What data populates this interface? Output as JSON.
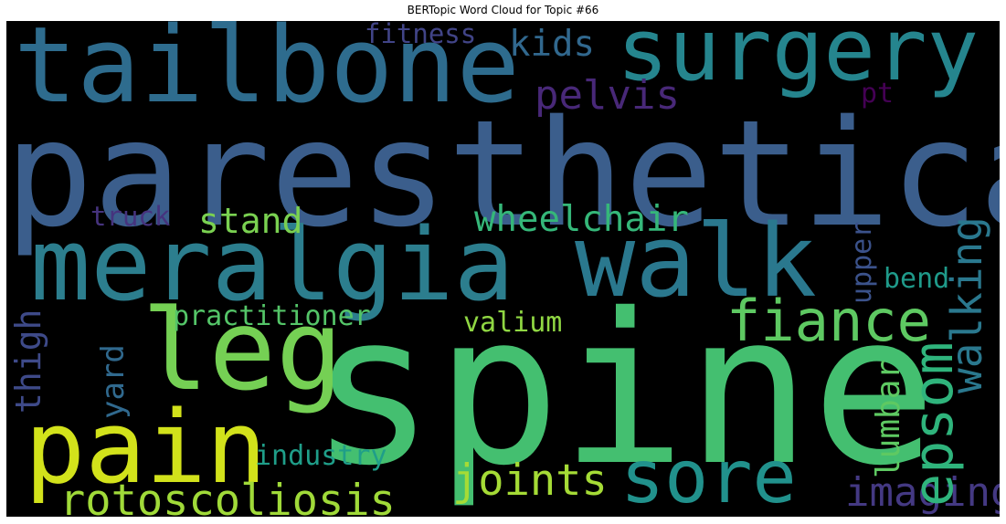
{
  "title": "BERTopic Word Cloud for Topic #66",
  "words": {
    "paresthetica": {
      "text": "paresthetica",
      "color": "#3b5e8c"
    },
    "spine": {
      "text": "spine",
      "color": "#44bf70"
    },
    "meralgia": {
      "text": "meralgia",
      "color": "#2c7e8e"
    },
    "tailbone": {
      "text": "tailbone",
      "color": "#2e6c8e"
    },
    "surgery": {
      "text": "surgery",
      "color": "#25858e"
    },
    "walk": {
      "text": "walk",
      "color": "#2a788e"
    },
    "leg": {
      "text": "leg",
      "color": "#75d054"
    },
    "pain": {
      "text": "pain",
      "color": "#d2e21b"
    },
    "sore": {
      "text": "sore",
      "color": "#21918c"
    },
    "fiance": {
      "text": "fiance",
      "color": "#5ec962"
    },
    "epsom": {
      "text": "epsom",
      "color": "#2fb47c"
    },
    "rotoscoliosis": {
      "text": "rotoscoliosis",
      "color": "#a0da39"
    },
    "joints": {
      "text": "joints",
      "color": "#a5db36"
    },
    "walking": {
      "text": "walking",
      "color": "#2a788e"
    },
    "wheelchair": {
      "text": "wheelchair",
      "color": "#35b779"
    },
    "imaging": {
      "text": "imaging",
      "color": "#443983"
    },
    "pelvis": {
      "text": "pelvis",
      "color": "#482878"
    },
    "kids": {
      "text": "kids",
      "color": "#31688e"
    },
    "stand": {
      "text": "stand",
      "color": "#7ad151"
    },
    "practitioner": {
      "text": "practitioner",
      "color": "#54c568"
    },
    "industry": {
      "text": "industry",
      "color": "#1f9e89"
    },
    "valium": {
      "text": "valium",
      "color": "#90d743"
    },
    "lumbar": {
      "text": "lumbar",
      "color": "#5ec962"
    },
    "thigh": {
      "text": "thigh",
      "color": "#3e4a89"
    },
    "yard": {
      "text": "yard",
      "color": "#30698e"
    },
    "fitness": {
      "text": "fitness",
      "color": "#414487"
    },
    "truck": {
      "text": "truck",
      "color": "#46337e"
    },
    "upper": {
      "text": "upper",
      "color": "#3b528b"
    },
    "bend": {
      "text": "bend",
      "color": "#1f9a8a"
    },
    "pt": {
      "text": "pt",
      "color": "#440154"
    }
  }
}
